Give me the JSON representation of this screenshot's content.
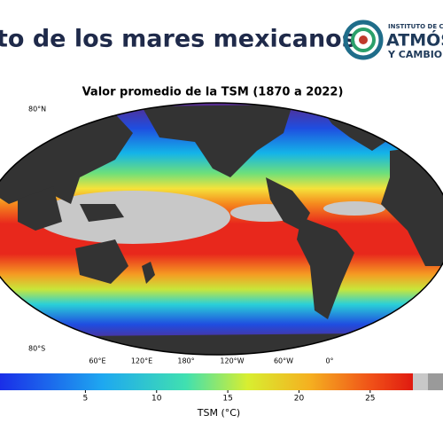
{
  "header": {
    "title": "to de los mares mexicanos",
    "logo": {
      "line1": "INSTITUTO DE C",
      "line2": "ATMÓS",
      "line3": "Y CAMBIO"
    }
  },
  "map": {
    "title": "Valor promedio de la TSM (1870 a 2022)",
    "lat_labels": [
      "80°N",
      "80°S"
    ],
    "lon_labels": [
      "60°E",
      "120°E",
      "180°",
      "120°W",
      "60°W",
      "0°"
    ],
    "colorbar": {
      "label": "TSM (°C)",
      "lim": [
        -1,
        28
      ],
      "ticks": [
        5,
        10,
        15,
        20,
        25
      ]
    }
  }
}
